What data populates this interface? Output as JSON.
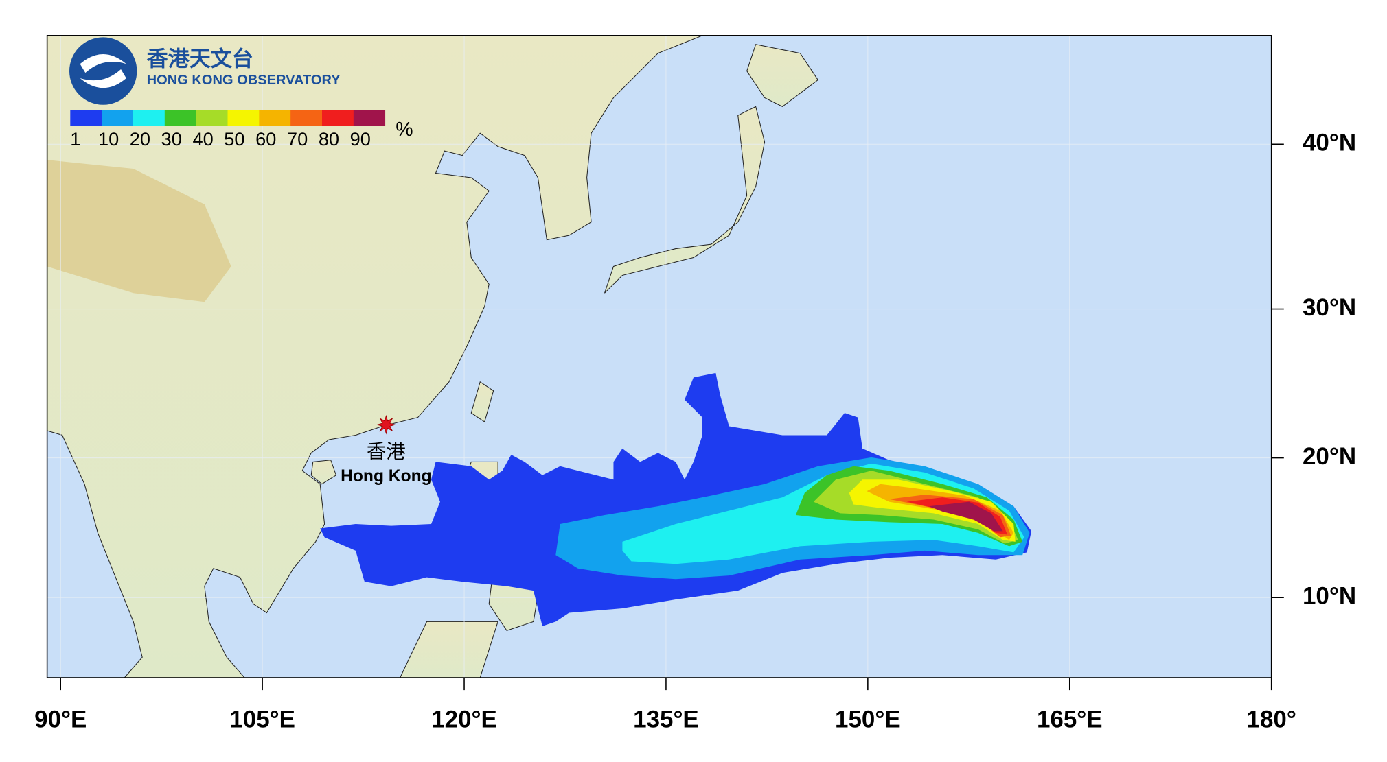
{
  "header": {
    "name_zh": "香港天文台",
    "name_en": "HONG KONG OBSERVATORY"
  },
  "legend": {
    "levels": [
      1,
      10,
      20,
      30,
      40,
      50,
      60,
      70,
      80,
      90
    ],
    "colors": [
      "#1e3cf0",
      "#12a2ee",
      "#1ef0f0",
      "#3cc328",
      "#a6dc28",
      "#f5f500",
      "#f5b400",
      "#f56414",
      "#f01e1e",
      "#a0144b"
    ],
    "unit": "%"
  },
  "map": {
    "xlim": [
      89,
      180
    ],
    "ylim": [
      4.1,
      45.9
    ],
    "xticks": [
      {
        "value": 90,
        "label": "90°E"
      },
      {
        "value": 105,
        "label": "105°E"
      },
      {
        "value": 120,
        "label": "120°E"
      },
      {
        "value": 135,
        "label": "135°E"
      },
      {
        "value": 150,
        "label": "150°E"
      },
      {
        "value": 165,
        "label": "165°E"
      },
      {
        "value": 180,
        "label": "180°"
      }
    ],
    "yticks": [
      {
        "value": 10,
        "label": "10°N"
      },
      {
        "value": 20,
        "label": "20°N"
      },
      {
        "value": 30,
        "label": "30°N"
      },
      {
        "value": 40,
        "label": "40°N"
      }
    ],
    "grid": true
  },
  "places": [
    {
      "label_zh": "香港",
      "label_en": "Hong Kong",
      "lon": 114.2,
      "lat": 22.3
    }
  ]
}
